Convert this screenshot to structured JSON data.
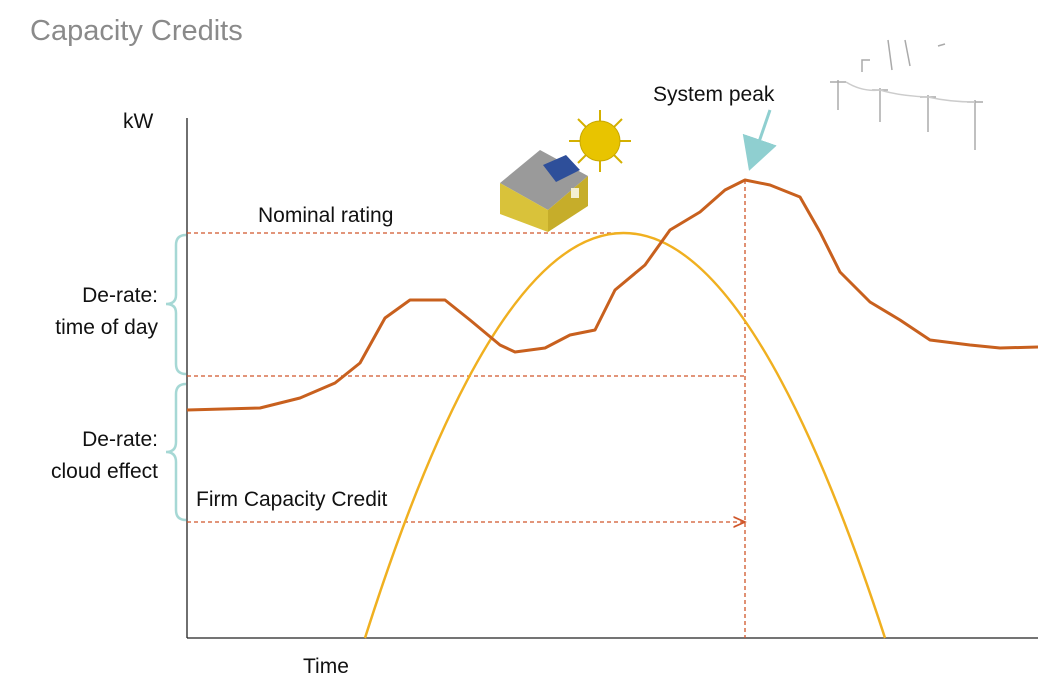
{
  "header": {
    "title": "Capacity Credits"
  },
  "axes": {
    "y_label": "kW",
    "x_label": "Time"
  },
  "annotations": {
    "system_peak": "System peak",
    "nominal_rating": "Nominal rating",
    "derate_time": [
      "De-rate:",
      "time of day"
    ],
    "derate_cloud": [
      "De-rate:",
      "cloud effect"
    ],
    "firm_capacity": "Firm Capacity Credit"
  }
}
